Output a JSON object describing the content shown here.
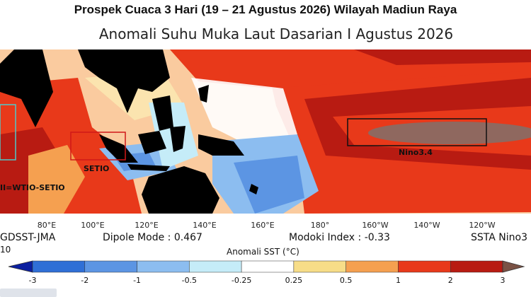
{
  "headline": "Prospek Cuaca 3 Hari (19 – 21 Agustus 2026) Wilayah Madiun Raya",
  "subtitle": "Anomali Suhu Muka Laut Dasarian I Agustus 2026",
  "map": {
    "regions": [
      {
        "label": "SETIO"
      },
      {
        "label": "Nino3.4"
      },
      {
        "label": "II=WTIO-SETIO"
      }
    ],
    "longitude_labels": [
      "80°E",
      "100°E",
      "120°E",
      "140°E",
      "160°E",
      "180°",
      "160°W",
      "140°W",
      "120°W"
    ],
    "colors": {
      "strong_warm": "#a01010",
      "warm": "#e43c1a",
      "mild_warm": "#f5a050",
      "slight_warm": "#f9d37c",
      "neutral": "#ffffff",
      "slight_cool": "#aee6f5",
      "cool": "#5fa6e6",
      "strong_cool": "#1f57c8",
      "peak": "#8a6a63",
      "land": "#000000"
    }
  },
  "info": {
    "source": "GDSST-JMA",
    "source_sub": "10",
    "dipole": "Dipole Mode : 0.467",
    "modoki": "Modoki Index : -0.33",
    "ssta": "SSTA Nino3"
  },
  "colorbar": {
    "title": "Anomali SST (°C)",
    "ticks": [
      "-3",
      "-2",
      "-1",
      "-0.5",
      "-0.25",
      "0.25",
      "0.5",
      "1",
      "2",
      "3"
    ],
    "colors": [
      "#0b1fa0",
      "#2f6fd6",
      "#5c95e3",
      "#8cbdf0",
      "#c5ecf8",
      "#ffffff",
      "#f7dd88",
      "#f5a050",
      "#e8391a",
      "#b81b12",
      "#7a5245"
    ]
  }
}
